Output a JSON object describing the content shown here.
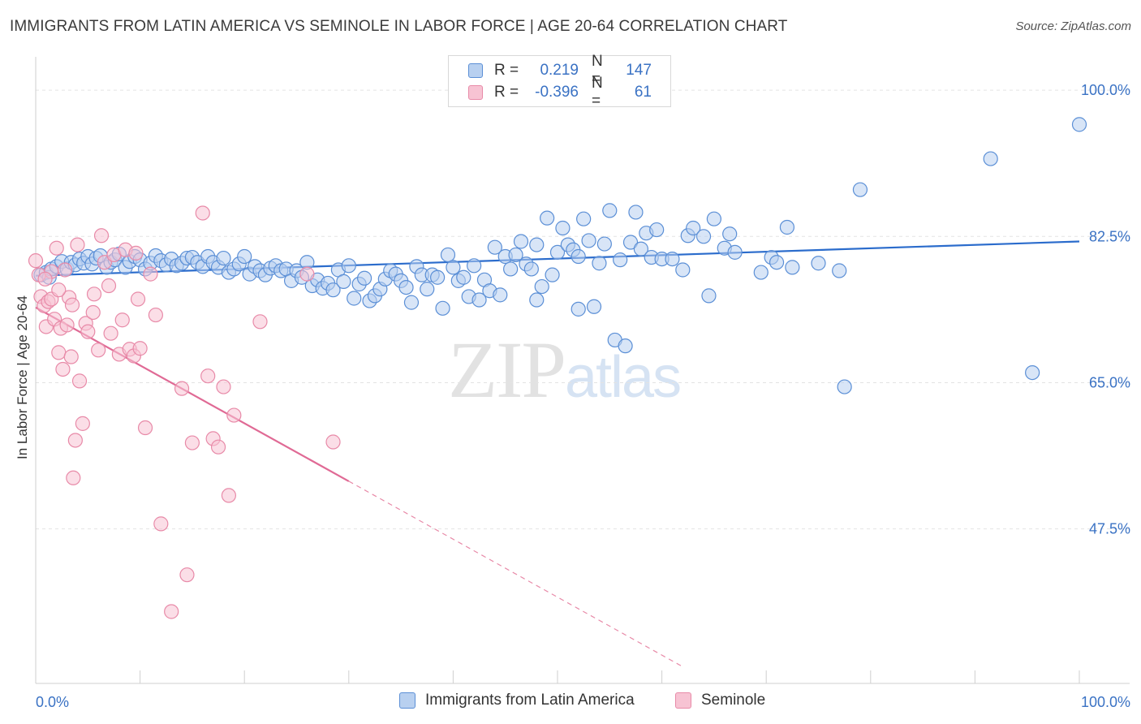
{
  "header": {
    "title": "IMMIGRANTS FROM LATIN AMERICA VS SEMINOLE IN LABOR FORCE | AGE 20-64 CORRELATION CHART",
    "source": "Source: ZipAtlas.com"
  },
  "watermark": {
    "zip": "ZIP",
    "atlas": "atlas"
  },
  "legend": {
    "rows": [
      {
        "r_label": "R =",
        "r_value": "0.219",
        "n_label": "N =",
        "n_value": "147",
        "color": "#5b8fd6",
        "fill": "#b8d0f0"
      },
      {
        "r_label": "R =",
        "r_value": "-0.396",
        "n_label": "N =",
        "n_value": "61",
        "color": "#e88aa8",
        "fill": "#f7c3d3"
      }
    ]
  },
  "bottom_legend": {
    "items": [
      {
        "label": "Immigrants from Latin America",
        "fill": "#b8d0f0",
        "color": "#5b8fd6"
      },
      {
        "label": "Seminole",
        "fill": "#f7c3d3",
        "color": "#e88aa8"
      }
    ]
  },
  "chart_data": {
    "type": "scatter",
    "title": "IMMIGRANTS FROM LATIN AMERICA VS SEMINOLE IN LABOR FORCE | AGE 20-64 CORRELATION CHART",
    "xlabel": "",
    "ylabel": "In Labor Force | Age 20-64",
    "xlim": [
      0,
      100
    ],
    "ylim": [
      29,
      104
    ],
    "x_tick_labels": [
      "0.0%",
      "100.0%"
    ],
    "y_ticks": [
      47.5,
      65.0,
      82.5,
      100.0
    ],
    "y_tick_labels": [
      "47.5%",
      "65.0%",
      "82.5%",
      "100.0%"
    ],
    "grid": true,
    "legend_position": "top-center",
    "series": [
      {
        "name": "Immigrants from Latin America",
        "color": "#5b8fd6",
        "fill": "#b8d0f0",
        "trend": {
          "x0": 0,
          "y0": 77.8,
          "x1": 100,
          "y1": 81.9
        },
        "points": [
          [
            0.5,
            77.9
          ],
          [
            1,
            78.2
          ],
          [
            1.3,
            77.6
          ],
          [
            1.5,
            78.6
          ],
          [
            2,
            78.9
          ],
          [
            2.5,
            79.5
          ],
          [
            3,
            78.6
          ],
          [
            3.4,
            79.4
          ],
          [
            3.8,
            79.1
          ],
          [
            4.2,
            79.8
          ],
          [
            4.6,
            79.3
          ],
          [
            5,
            80.1
          ],
          [
            5.4,
            79.2
          ],
          [
            5.8,
            79.9
          ],
          [
            6.2,
            80.2
          ],
          [
            6.8,
            78.8
          ],
          [
            7.2,
            79.4
          ],
          [
            7.6,
            79.7
          ],
          [
            8,
            80.4
          ],
          [
            8.6,
            78.8
          ],
          [
            9,
            79.5
          ],
          [
            9.5,
            80.1
          ],
          [
            10,
            79.7
          ],
          [
            10.5,
            78.6
          ],
          [
            11,
            79.3
          ],
          [
            11.5,
            80.2
          ],
          [
            12,
            79.6
          ],
          [
            12.5,
            79.1
          ],
          [
            13,
            79.8
          ],
          [
            13.5,
            79.0
          ],
          [
            14,
            79.3
          ],
          [
            14.5,
            79.9
          ],
          [
            15,
            80.0
          ],
          [
            15.5,
            79.4
          ],
          [
            16,
            78.9
          ],
          [
            16.5,
            80.1
          ],
          [
            17,
            79.4
          ],
          [
            17.5,
            78.8
          ],
          [
            18,
            79.9
          ],
          [
            18.5,
            78.2
          ],
          [
            19,
            78.6
          ],
          [
            19.5,
            79.2
          ],
          [
            20,
            80.1
          ],
          [
            20.5,
            78.0
          ],
          [
            21,
            78.9
          ],
          [
            21.5,
            78.4
          ],
          [
            22,
            77.9
          ],
          [
            22.5,
            78.7
          ],
          [
            23,
            79.0
          ],
          [
            23.5,
            78.4
          ],
          [
            24,
            78.6
          ],
          [
            24.5,
            77.2
          ],
          [
            25,
            78.4
          ],
          [
            25.5,
            77.6
          ],
          [
            26,
            79.4
          ],
          [
            26.5,
            76.6
          ],
          [
            27,
            77.3
          ],
          [
            27.5,
            76.3
          ],
          [
            28,
            76.9
          ],
          [
            28.5,
            76.1
          ],
          [
            29,
            78.5
          ],
          [
            29.5,
            77.1
          ],
          [
            30,
            79.0
          ],
          [
            30.5,
            75.1
          ],
          [
            31,
            76.8
          ],
          [
            31.5,
            77.5
          ],
          [
            32,
            74.8
          ],
          [
            32.5,
            75.4
          ],
          [
            33,
            76.2
          ],
          [
            33.5,
            77.4
          ],
          [
            34,
            78.4
          ],
          [
            34.5,
            78.0
          ],
          [
            35,
            77.2
          ],
          [
            35.5,
            76.4
          ],
          [
            36,
            74.6
          ],
          [
            36.5,
            78.9
          ],
          [
            37,
            77.9
          ],
          [
            37.5,
            76.2
          ],
          [
            38,
            77.9
          ],
          [
            38.5,
            77.6
          ],
          [
            39,
            73.9
          ],
          [
            39.5,
            80.3
          ],
          [
            40,
            78.8
          ],
          [
            40.5,
            77.2
          ],
          [
            41,
            77.6
          ],
          [
            41.5,
            75.3
          ],
          [
            42,
            79.0
          ],
          [
            42.5,
            74.9
          ],
          [
            43,
            77.3
          ],
          [
            43.5,
            76.0
          ],
          [
            44,
            81.2
          ],
          [
            44.5,
            75.5
          ],
          [
            45,
            80.1
          ],
          [
            45.5,
            78.6
          ],
          [
            46,
            80.3
          ],
          [
            46.5,
            81.9
          ],
          [
            47,
            79.2
          ],
          [
            47.5,
            78.6
          ],
          [
            48,
            81.5
          ],
          [
            48.5,
            76.5
          ],
          [
            49,
            84.7
          ],
          [
            49.5,
            77.9
          ],
          [
            50,
            80.6
          ],
          [
            50.5,
            83.5
          ],
          [
            51,
            81.5
          ],
          [
            51.5,
            80.9
          ],
          [
            52,
            80.1
          ],
          [
            52.5,
            84.6
          ],
          [
            53,
            82.0
          ],
          [
            53.5,
            74.1
          ],
          [
            54,
            79.3
          ],
          [
            54.5,
            81.6
          ],
          [
            55,
            85.6
          ],
          [
            55.5,
            70.1
          ],
          [
            56,
            79.7
          ],
          [
            56.5,
            69.4
          ],
          [
            57,
            81.8
          ],
          [
            57.5,
            85.4
          ],
          [
            58,
            81.0
          ],
          [
            58.5,
            82.9
          ],
          [
            59,
            80.0
          ],
          [
            59.5,
            83.3
          ],
          [
            60,
            79.8
          ],
          [
            61,
            79.8
          ],
          [
            62,
            78.5
          ],
          [
            62.5,
            82.6
          ],
          [
            63,
            83.5
          ],
          [
            64,
            82.5
          ],
          [
            64.5,
            75.4
          ],
          [
            65,
            84.6
          ],
          [
            66,
            81.1
          ],
          [
            66.5,
            82.8
          ],
          [
            67,
            80.6
          ],
          [
            69.5,
            78.2
          ],
          [
            70.5,
            80.0
          ],
          [
            71,
            79.4
          ],
          [
            72,
            83.6
          ],
          [
            72.5,
            78.8
          ],
          [
            75,
            79.3
          ],
          [
            77,
            78.4
          ],
          [
            77.5,
            64.5
          ],
          [
            79,
            88.1
          ],
          [
            95.5,
            66.2
          ],
          [
            91.5,
            91.8
          ],
          [
            100,
            95.9
          ],
          [
            52,
            73.8
          ],
          [
            48,
            74.9
          ]
        ]
      },
      {
        "name": "Seminole",
        "color": "#e88aa8",
        "fill": "#f7c3d3",
        "trend": {
          "x0": 0,
          "y0": 74.0,
          "x1": 30,
          "y1": 53.2,
          "dash_to_x": 62,
          "dash_to_y": 31
        },
        "points": [
          [
            0,
            79.6
          ],
          [
            0.3,
            77.9
          ],
          [
            0.5,
            75.3
          ],
          [
            0.8,
            74.2
          ],
          [
            1,
            71.7
          ],
          [
            1.2,
            74.7
          ],
          [
            1.5,
            78.3
          ],
          [
            1.8,
            72.6
          ],
          [
            2,
            81.1
          ],
          [
            2.2,
            68.6
          ],
          [
            2.4,
            71.5
          ],
          [
            2.6,
            66.6
          ],
          [
            2.8,
            78.5
          ],
          [
            3,
            71.9
          ],
          [
            3.2,
            75.2
          ],
          [
            3.4,
            68.1
          ],
          [
            3.6,
            53.6
          ],
          [
            3.8,
            58.1
          ],
          [
            4,
            81.5
          ],
          [
            4.2,
            65.2
          ],
          [
            4.5,
            60.1
          ],
          [
            4.8,
            72.1
          ],
          [
            5,
            71.1
          ],
          [
            5.5,
            73.4
          ],
          [
            6,
            68.9
          ],
          [
            6.3,
            82.6
          ],
          [
            6.6,
            79.4
          ],
          [
            7,
            76.6
          ],
          [
            7.5,
            80.3
          ],
          [
            8,
            68.4
          ],
          [
            8.3,
            72.5
          ],
          [
            8.6,
            80.9
          ],
          [
            9,
            69.0
          ],
          [
            9.4,
            68.2
          ],
          [
            9.8,
            75.0
          ],
          [
            10,
            69.1
          ],
          [
            10.5,
            59.6
          ],
          [
            11,
            78.0
          ],
          [
            11.5,
            73.1
          ],
          [
            12,
            48.1
          ],
          [
            13,
            37.6
          ],
          [
            14,
            64.3
          ],
          [
            14.5,
            42.0
          ],
          [
            15,
            57.8
          ],
          [
            16,
            85.3
          ],
          [
            16.5,
            65.8
          ],
          [
            17,
            58.3
          ],
          [
            17.5,
            57.3
          ],
          [
            18,
            64.5
          ],
          [
            18.5,
            51.5
          ],
          [
            19,
            61.1
          ],
          [
            21.5,
            72.3
          ],
          [
            26,
            78.0
          ],
          [
            28.5,
            57.9
          ],
          [
            1.5,
            75.0
          ],
          [
            2.2,
            76.1
          ],
          [
            0.9,
            77.4
          ],
          [
            5.6,
            75.6
          ],
          [
            3.5,
            74.3
          ],
          [
            7.2,
            70.9
          ],
          [
            9.6,
            80.5
          ]
        ]
      }
    ]
  }
}
